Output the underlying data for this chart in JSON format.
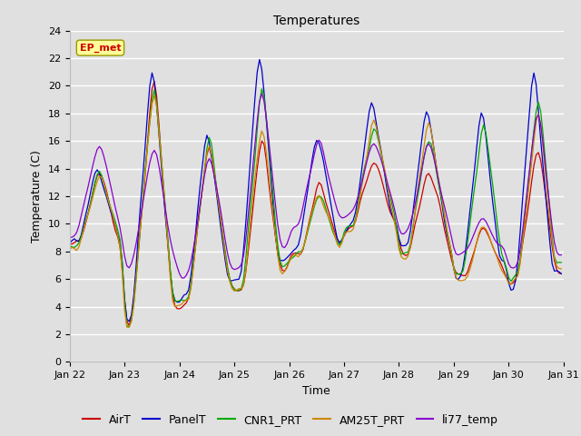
{
  "title": "Temperatures",
  "xlabel": "Time",
  "ylabel": "Temperature (C)",
  "ylim": [
    0,
    24
  ],
  "yticks": [
    0,
    2,
    4,
    6,
    8,
    10,
    12,
    14,
    16,
    18,
    20,
    22,
    24
  ],
  "xtick_labels": [
    "Jan 22",
    "Jan 23",
    "Jan 24",
    "Jan 25",
    "Jan 26",
    "Jan 27",
    "Jan 28",
    "Jan 29",
    "Jan 30",
    "Jan 31"
  ],
  "legend_order": [
    "AirT",
    "PanelT",
    "CNR1_PRT",
    "AM25T_PRT",
    "li77_temp"
  ],
  "colors": {
    "AirT": "#cc0000",
    "PanelT": "#0000cc",
    "CNR1_PRT": "#00aa00",
    "AM25T_PRT": "#cc8800",
    "li77_temp": "#8800cc"
  },
  "annotation": {
    "text": "EP_met",
    "fontsize": 8,
    "color": "#cc0000",
    "bg": "#ffff99",
    "border": "#999900"
  },
  "bg_color": "#e0e0e0",
  "title_fontsize": 10,
  "axis_fontsize": 9,
  "tick_fontsize": 8
}
